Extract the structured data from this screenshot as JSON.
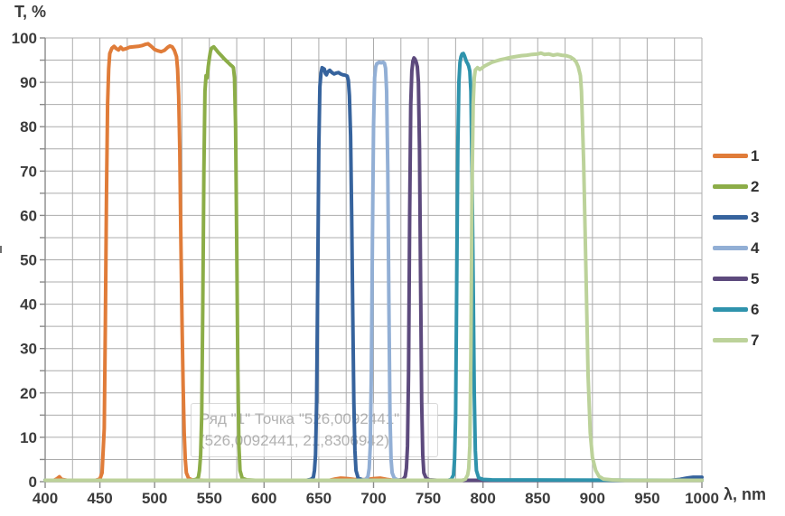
{
  "chart_data": {
    "type": "line",
    "title": "",
    "ylabel": "T, %",
    "xlabel": "λ, nm",
    "xlim": [
      400,
      1000
    ],
    "ylim": [
      0,
      100
    ],
    "x_ticks": [
      400,
      450,
      500,
      550,
      600,
      650,
      700,
      750,
      800,
      850,
      900,
      950,
      1000
    ],
    "y_ticks": [
      0,
      10,
      20,
      30,
      40,
      50,
      60,
      70,
      80,
      90,
      100
    ],
    "x_grid_step": 25,
    "y_grid_step": 5,
    "grid": true,
    "legend_position": "right",
    "colors": {
      "grid": "#acacac",
      "axis": "#8a8a8a",
      "label": "#3b3b3b"
    },
    "tooltip_watermark": {
      "line1": "Ряд \"1\" Точка \"526,0092441\"",
      "line2": "(526,0092441, 21,8306942)"
    },
    "series": [
      {
        "name": "1",
        "color": "#E07C39",
        "points": [
          [
            400,
            0.3
          ],
          [
            408,
            0.3
          ],
          [
            411,
            0.7
          ],
          [
            413,
            1.1
          ],
          [
            415,
            0.5
          ],
          [
            420,
            0.3
          ],
          [
            446,
            0.3
          ],
          [
            450,
            0.6
          ],
          [
            452,
            2
          ],
          [
            454,
            12
          ],
          [
            455,
            35
          ],
          [
            456,
            65
          ],
          [
            457,
            85
          ],
          [
            458,
            93
          ],
          [
            459,
            96.5
          ],
          [
            461,
            97.7
          ],
          [
            463,
            98.1
          ],
          [
            465,
            97.6
          ],
          [
            467,
            97.3
          ],
          [
            469,
            97.9
          ],
          [
            471,
            97.4
          ],
          [
            474,
            97.6
          ],
          [
            477,
            97.9
          ],
          [
            481,
            98
          ],
          [
            485,
            98.1
          ],
          [
            489,
            98.3
          ],
          [
            492,
            98.6
          ],
          [
            494,
            98.7
          ],
          [
            497,
            98.1
          ],
          [
            500,
            97.4
          ],
          [
            503,
            97.1
          ],
          [
            506,
            96.9
          ],
          [
            509,
            97.2
          ],
          [
            512,
            97.9
          ],
          [
            514,
            98.2
          ],
          [
            516,
            98
          ],
          [
            518,
            97.2
          ],
          [
            520,
            95.8
          ],
          [
            521,
            93
          ],
          [
            522,
            87
          ],
          [
            523,
            75
          ],
          [
            524,
            55
          ],
          [
            525,
            36
          ],
          [
            526,
            21.8
          ],
          [
            527,
            11
          ],
          [
            528,
            5
          ],
          [
            529,
            2
          ],
          [
            531,
            0.8
          ],
          [
            534,
            0.4
          ],
          [
            545,
            0.3
          ],
          [
            660,
            0.3
          ],
          [
            665,
            0.6
          ],
          [
            670,
            0.8
          ],
          [
            676,
            0.7
          ],
          [
            682,
            0.5
          ],
          [
            688,
            0.4
          ],
          [
            695,
            0.5
          ],
          [
            700,
            0.7
          ],
          [
            706,
            0.8
          ],
          [
            712,
            0.5
          ],
          [
            718,
            0.3
          ],
          [
            1000,
            0.3
          ]
        ]
      },
      {
        "name": "2",
        "color": "#8CAD48",
        "points": [
          [
            400,
            0.3
          ],
          [
            534,
            0.3
          ],
          [
            538,
            0.5
          ],
          [
            540,
            1
          ],
          [
            541,
            2.5
          ],
          [
            542,
            6
          ],
          [
            543,
            15
          ],
          [
            544,
            40
          ],
          [
            545,
            70
          ],
          [
            546,
            88
          ],
          [
            547,
            91.5
          ],
          [
            548,
            91
          ],
          [
            549,
            93.5
          ],
          [
            550,
            95.5
          ],
          [
            551,
            97
          ],
          [
            552,
            97.7
          ],
          [
            554,
            98
          ],
          [
            556,
            97.4
          ],
          [
            558,
            96.8
          ],
          [
            561,
            96
          ],
          [
            564,
            95.2
          ],
          [
            567,
            94.5
          ],
          [
            569,
            94
          ],
          [
            571,
            93.6
          ],
          [
            572,
            93.3
          ],
          [
            573,
            91
          ],
          [
            574,
            80
          ],
          [
            575,
            55
          ],
          [
            576,
            25
          ],
          [
            577,
            8
          ],
          [
            578,
            2.5
          ],
          [
            580,
            0.8
          ],
          [
            584,
            0.4
          ],
          [
            592,
            0.3
          ],
          [
            1000,
            0.3
          ]
        ]
      },
      {
        "name": "3",
        "color": "#36639D",
        "points": [
          [
            400,
            0.3
          ],
          [
            639,
            0.3
          ],
          [
            643,
            0.5
          ],
          [
            645,
            1
          ],
          [
            646,
            2.5
          ],
          [
            647,
            6
          ],
          [
            648,
            18
          ],
          [
            649,
            45
          ],
          [
            650,
            75
          ],
          [
            651,
            89
          ],
          [
            652,
            92
          ],
          [
            653,
            93.3
          ],
          [
            655,
            93
          ],
          [
            656,
            92
          ],
          [
            657,
            91.7
          ],
          [
            658,
            92.3
          ],
          [
            660,
            92.7
          ],
          [
            662,
            92.2
          ],
          [
            664,
            91.9
          ],
          [
            666,
            92.1
          ],
          [
            668,
            92.2
          ],
          [
            670,
            91.9
          ],
          [
            672,
            91.7
          ],
          [
            674,
            91.6
          ],
          [
            676,
            91.4
          ],
          [
            677,
            90.5
          ],
          [
            678,
            87
          ],
          [
            679,
            78
          ],
          [
            680,
            60
          ],
          [
            681,
            38
          ],
          [
            682,
            18
          ],
          [
            683,
            7
          ],
          [
            684,
            2.5
          ],
          [
            686,
            0.8
          ],
          [
            690,
            0.4
          ],
          [
            700,
            0.3
          ],
          [
            972,
            0.3
          ],
          [
            980,
            0.5
          ],
          [
            986,
            0.8
          ],
          [
            992,
            1
          ],
          [
            1000,
            1
          ]
        ]
      },
      {
        "name": "4",
        "color": "#92AFD5",
        "points": [
          [
            400,
            0.3
          ],
          [
            689,
            0.3
          ],
          [
            693,
            0.5
          ],
          [
            695,
            1.2
          ],
          [
            696,
            3
          ],
          [
            697,
            8
          ],
          [
            698,
            25
          ],
          [
            699,
            55
          ],
          [
            700,
            80
          ],
          [
            701,
            91
          ],
          [
            702,
            93.5
          ],
          [
            703,
            94.2
          ],
          [
            705,
            94.5
          ],
          [
            707,
            94.4
          ],
          [
            709,
            94.5
          ],
          [
            710,
            94.3
          ],
          [
            711,
            93.2
          ],
          [
            712,
            88
          ],
          [
            713,
            70
          ],
          [
            714,
            40
          ],
          [
            715,
            15
          ],
          [
            716,
            5
          ],
          [
            717,
            2
          ],
          [
            719,
            0.8
          ],
          [
            722,
            0.4
          ],
          [
            730,
            0.3
          ],
          [
            1000,
            0.3
          ]
        ]
      },
      {
        "name": "5",
        "color": "#5D4A7D",
        "points": [
          [
            400,
            0.3
          ],
          [
            723,
            0.3
          ],
          [
            727,
            0.5
          ],
          [
            729,
            1.2
          ],
          [
            730,
            3
          ],
          [
            731,
            8
          ],
          [
            732,
            25
          ],
          [
            733,
            60
          ],
          [
            734,
            85
          ],
          [
            735,
            92.5
          ],
          [
            736,
            94.8
          ],
          [
            737,
            95.5
          ],
          [
            738,
            95.2
          ],
          [
            739,
            94.5
          ],
          [
            740,
            93.5
          ],
          [
            741,
            90
          ],
          [
            742,
            75
          ],
          [
            743,
            45
          ],
          [
            744,
            18
          ],
          [
            745,
            6
          ],
          [
            746,
            2
          ],
          [
            748,
            0.8
          ],
          [
            751,
            0.4
          ],
          [
            758,
            0.3
          ],
          [
            1000,
            0.3
          ]
        ]
      },
      {
        "name": "6",
        "color": "#2F93AC",
        "points": [
          [
            400,
            0.3
          ],
          [
            768,
            0.3
          ],
          [
            771,
            0.5
          ],
          [
            773,
            1.5
          ],
          [
            774,
            5
          ],
          [
            775,
            15
          ],
          [
            776,
            45
          ],
          [
            777,
            75
          ],
          [
            778,
            90
          ],
          [
            779,
            94.5
          ],
          [
            780,
            95.8
          ],
          [
            781,
            96.4
          ],
          [
            782,
            96.5
          ],
          [
            783,
            96
          ],
          [
            784,
            95.3
          ],
          [
            785,
            94.6
          ],
          [
            786,
            94.2
          ],
          [
            787,
            93.6
          ],
          [
            788,
            92.5
          ],
          [
            789,
            88
          ],
          [
            790,
            70
          ],
          [
            791,
            45
          ],
          [
            792,
            20
          ],
          [
            793,
            7
          ],
          [
            794,
            2.5
          ],
          [
            796,
            0.9
          ],
          [
            800,
            0.5
          ],
          [
            808,
            0.4
          ],
          [
            1000,
            0.3
          ]
        ]
      },
      {
        "name": "7",
        "color": "#BCD29A",
        "points": [
          [
            400,
            0.3
          ],
          [
            781,
            0.3
          ],
          [
            784,
            0.6
          ],
          [
            786,
            1.5
          ],
          [
            787,
            3
          ],
          [
            788,
            8
          ],
          [
            789,
            30
          ],
          [
            790,
            65
          ],
          [
            791,
            85
          ],
          [
            792,
            91
          ],
          [
            793,
            92.8
          ],
          [
            795,
            93.3
          ],
          [
            797,
            92.9
          ],
          [
            799,
            93.2
          ],
          [
            801,
            93.6
          ],
          [
            804,
            94
          ],
          [
            808,
            94.5
          ],
          [
            812,
            94.8
          ],
          [
            816,
            95.1
          ],
          [
            820,
            95.3
          ],
          [
            825,
            95.6
          ],
          [
            830,
            95.8
          ],
          [
            835,
            96
          ],
          [
            840,
            96.1
          ],
          [
            845,
            96.3
          ],
          [
            850,
            96.4
          ],
          [
            853,
            96.6
          ],
          [
            856,
            96.3
          ],
          [
            860,
            96.4
          ],
          [
            864,
            96.1
          ],
          [
            868,
            96.3
          ],
          [
            872,
            96.1
          ],
          [
            876,
            96
          ],
          [
            880,
            95.7
          ],
          [
            883,
            95.2
          ],
          [
            885,
            94.6
          ],
          [
            887,
            93.5
          ],
          [
            889,
            91.5
          ],
          [
            890,
            88
          ],
          [
            892,
            72
          ],
          [
            894,
            48
          ],
          [
            896,
            24
          ],
          [
            898,
            11
          ],
          [
            900,
            5.5
          ],
          [
            903,
            2.5
          ],
          [
            906,
            1.2
          ],
          [
            910,
            0.6
          ],
          [
            918,
            0.4
          ],
          [
            930,
            0.3
          ],
          [
            1000,
            0.3
          ]
        ]
      }
    ]
  }
}
